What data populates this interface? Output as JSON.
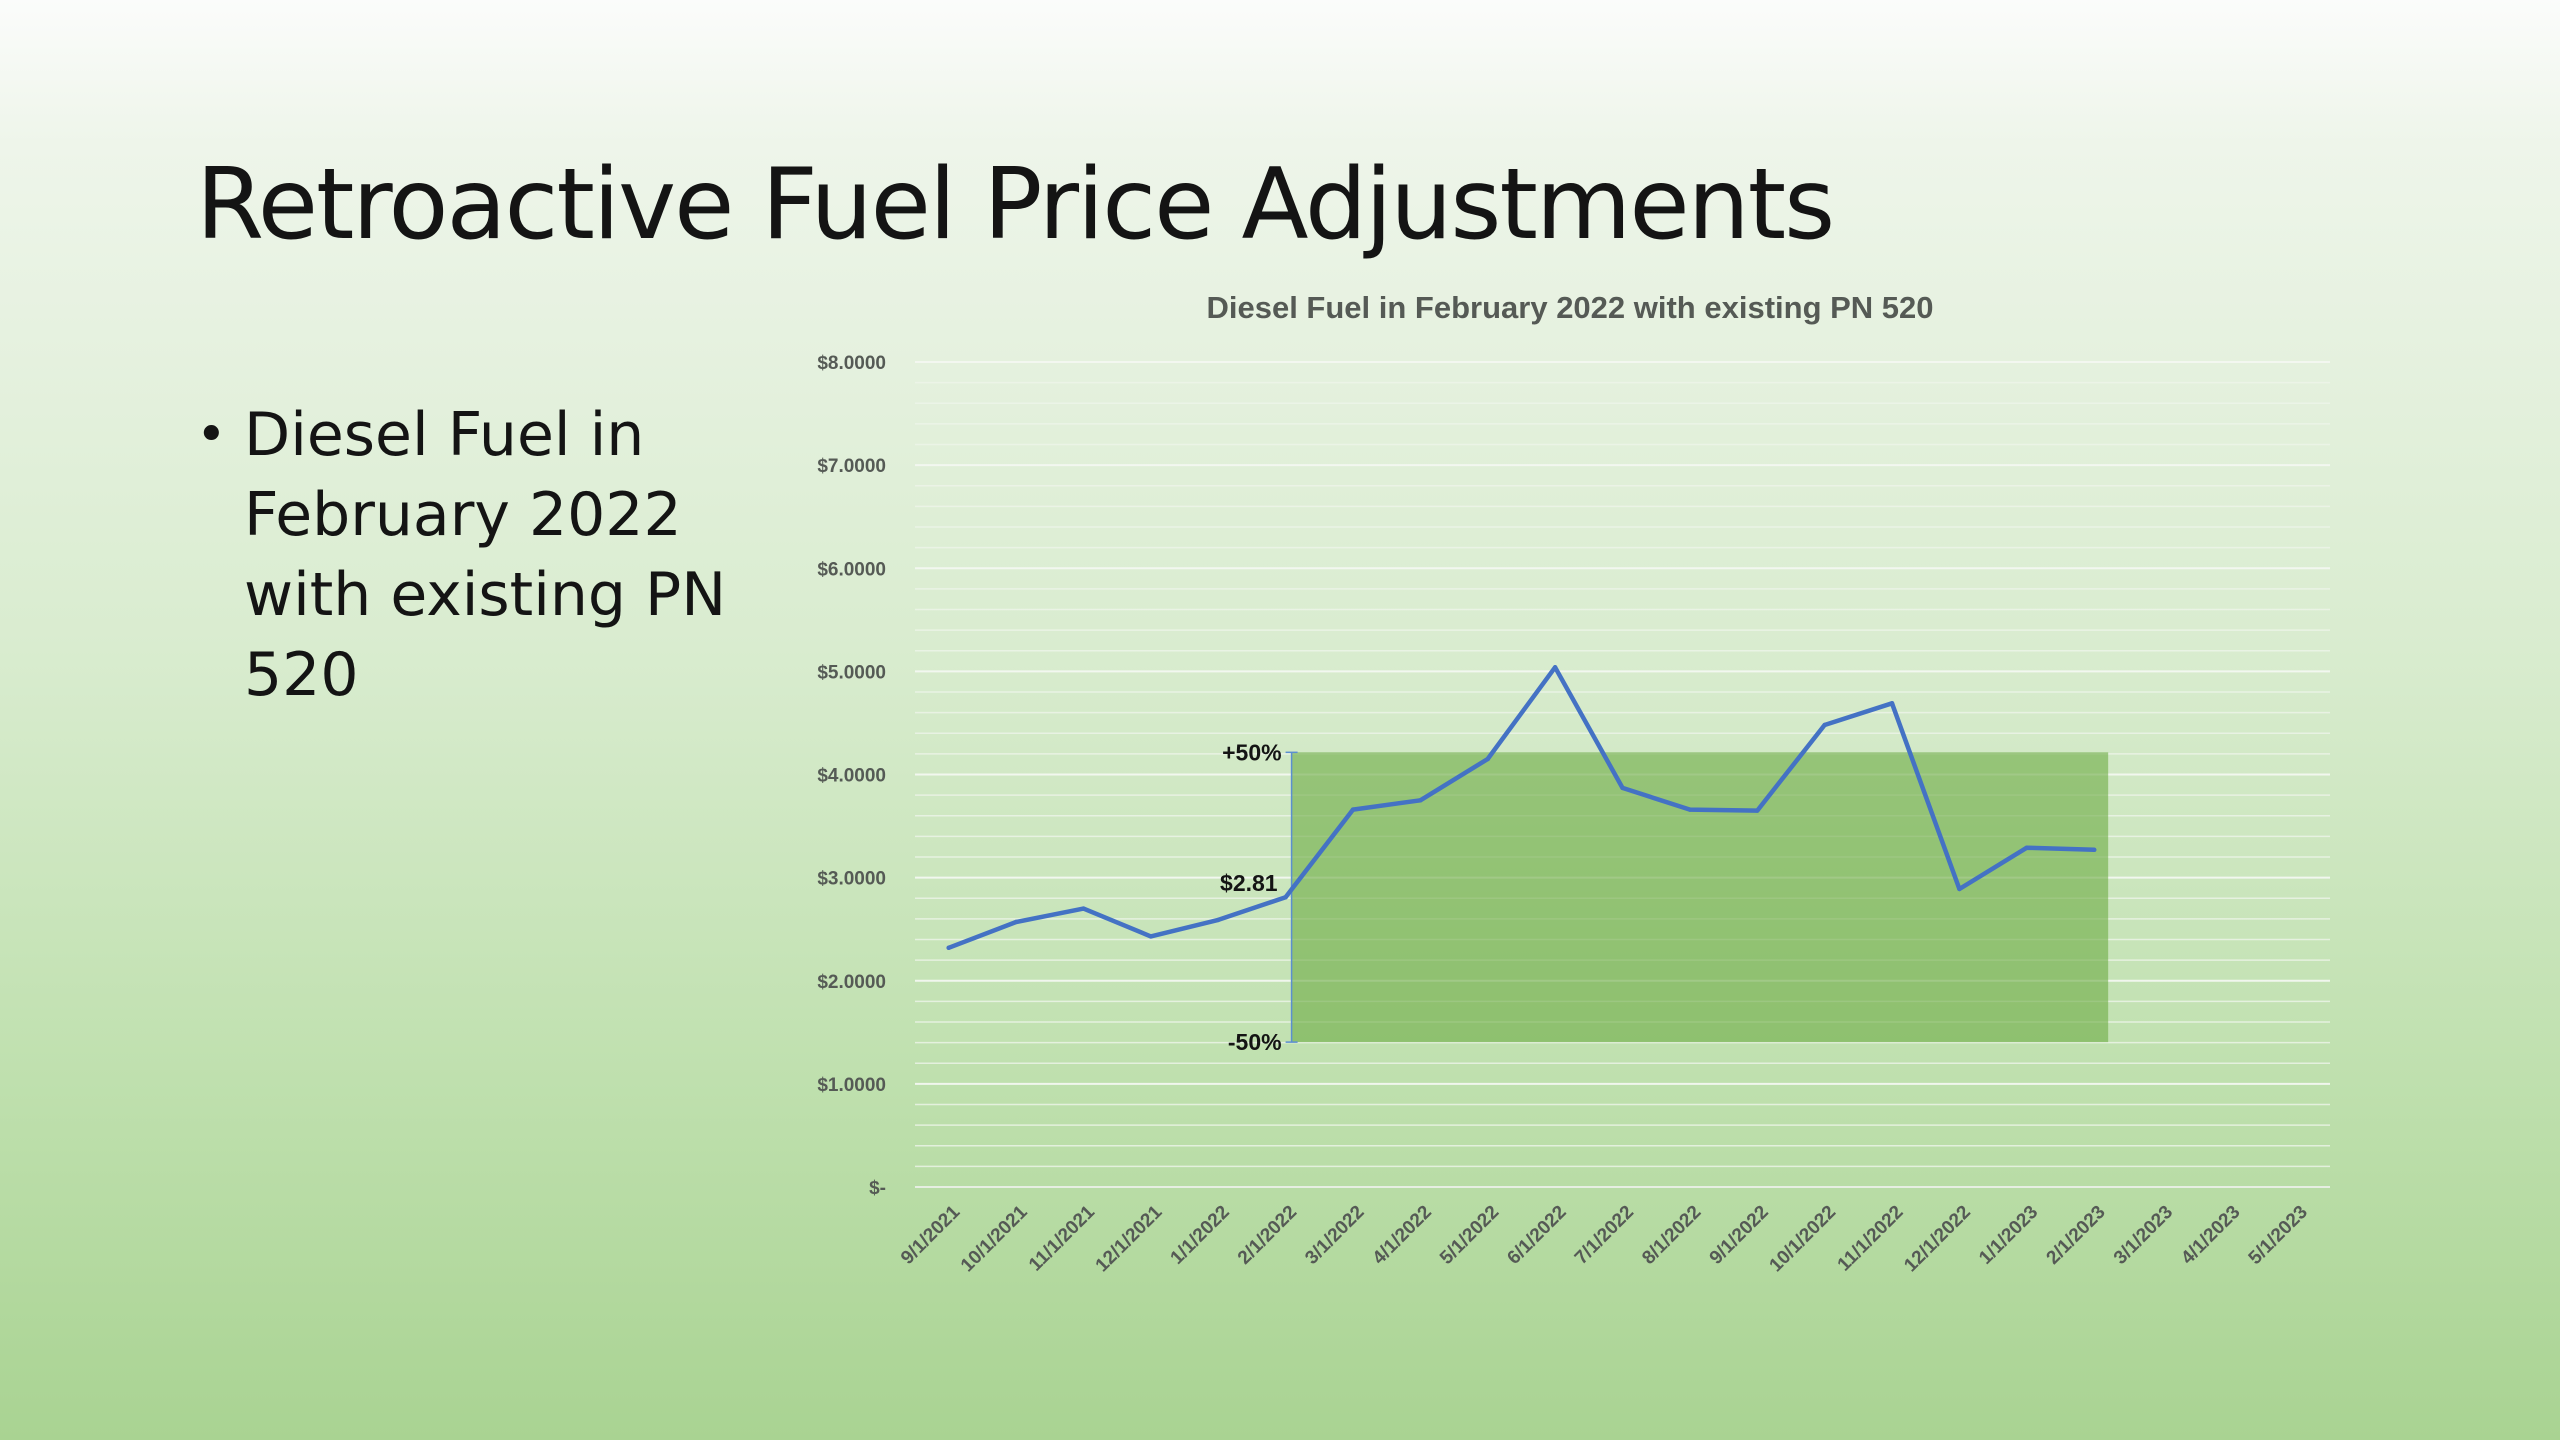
{
  "slide": {
    "title": "Retroactive Fuel Price Adjustments",
    "bullets": [
      "Diesel Fuel in February 2022 with existing PN 520"
    ]
  },
  "colors": {
    "line": "#4472c4",
    "band": "#70ad47",
    "text": "#141414",
    "chart_title": "#555a55"
  },
  "chart_data": {
    "type": "line",
    "title": "Diesel Fuel in February 2022 with existing PN 520",
    "xlabel": "",
    "ylabel": "",
    "categories": [
      "9/1/2021",
      "10/1/2021",
      "11/1/2021",
      "12/1/2021",
      "1/1/2022",
      "2/1/2022",
      "3/1/2022",
      "4/1/2022",
      "5/1/2022",
      "6/1/2022",
      "7/1/2022",
      "8/1/2022",
      "9/1/2022",
      "10/1/2022",
      "11/1/2022",
      "12/1/2022",
      "1/1/2023",
      "2/1/2023",
      "3/1/2023",
      "4/1/2023",
      "5/1/2023"
    ],
    "series": [
      {
        "name": "",
        "values": [
          2.32,
          2.57,
          2.7,
          2.43,
          2.59,
          2.81,
          3.66,
          3.75,
          4.15,
          5.04,
          3.87,
          3.66,
          3.65,
          4.48,
          4.69,
          2.89,
          3.29,
          3.27,
          null,
          null,
          null
        ]
      }
    ],
    "ylim": [
      0,
      8
    ],
    "y_ticks": [
      0,
      1,
      2,
      3,
      4,
      5,
      6,
      7,
      8
    ],
    "y_tick_labels": [
      "$-",
      "$1.0000",
      "$2.0000",
      "$3.0000",
      "$4.0000",
      "$5.0000",
      "$6.0000",
      "$7.0000",
      "$8.0000"
    ],
    "grid": true,
    "legend": "none",
    "band": {
      "base_value": 2.81,
      "upper_value": 4.215,
      "lower_value": 1.405,
      "start_category": "2/1/2022",
      "end_category": "2/1/2023",
      "upper_label": "+50%",
      "lower_label": "-50%",
      "base_label": "$2.81"
    }
  }
}
